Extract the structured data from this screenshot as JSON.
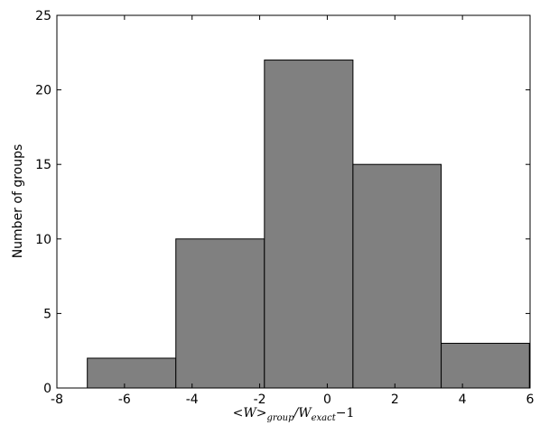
{
  "chart_data": {
    "type": "histogram",
    "xlabel": [
      "<W>",
      "group",
      "/W",
      "exact",
      "−1"
    ],
    "ylabel": "Number of groups",
    "bins": [
      -7.1,
      -4.48,
      -1.86,
      0.76,
      3.37,
      5.98
    ],
    "values": [
      2,
      10,
      22,
      15,
      3
    ],
    "color": "#808080",
    "xlim": [
      -8,
      6
    ],
    "xticks": [
      -8,
      -6,
      -4,
      -2,
      0,
      2,
      4,
      6
    ],
    "ylim": [
      0,
      25
    ],
    "yticks": [
      0,
      5,
      10,
      15,
      20,
      25
    ]
  }
}
